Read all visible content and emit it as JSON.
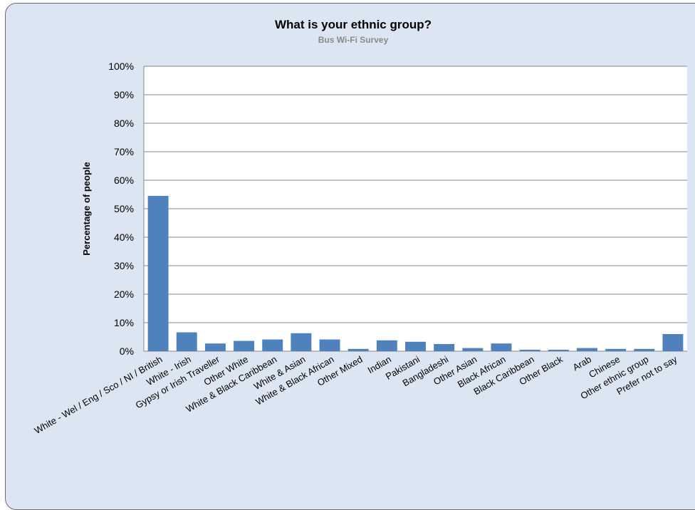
{
  "chart_data": {
    "type": "bar",
    "title": "What is your ethnic group?",
    "subtitle": "Bus Wi-Fi Survey",
    "xlabel": "",
    "ylabel": "Percentage of people",
    "ylim": [
      0,
      100
    ],
    "yticks": [
      "0%",
      "10%",
      "20%",
      "30%",
      "40%",
      "50%",
      "60%",
      "70%",
      "80%",
      "90%",
      "100%"
    ],
    "grid": true,
    "legend": "none",
    "bar_color": "#4f81bd",
    "categories": [
      "White - Wel / Eng / Sco / NI / British",
      "White - Irish",
      "Gypsy or Irish Traveller",
      "Other White",
      "White & Black Caribbean",
      "White & Asian",
      "White & Black African",
      "Other Mixed",
      "Indian",
      "Pakistani",
      "Bangladeshi",
      "Other Asian",
      "Black African",
      "Black Caribbean",
      "Other Black",
      "Arab",
      "Chinese",
      "Other ethnic group",
      "Prefer not to say"
    ],
    "values": [
      54.5,
      6.6,
      2.7,
      3.6,
      4.1,
      6.3,
      4.1,
      0.8,
      3.8,
      3.3,
      2.5,
      1.1,
      2.7,
      0.5,
      0.5,
      1.1,
      0.8,
      0.8,
      6.0
    ]
  }
}
